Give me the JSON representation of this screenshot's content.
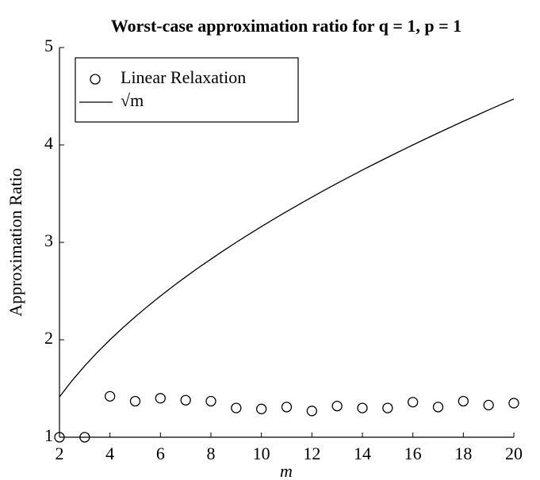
{
  "chart_data": {
    "type": "line",
    "title": "Worst-case approximation ratio for q = 1, p = 1",
    "xlabel": "m",
    "ylabel": "Approximation Ratio",
    "xlim": [
      2,
      20
    ],
    "ylim": [
      1,
      5
    ],
    "xticks": [
      2,
      4,
      6,
      8,
      10,
      12,
      14,
      16,
      18,
      20
    ],
    "yticks": [
      1,
      2,
      3,
      4,
      5
    ],
    "legend": "upper left",
    "series": [
      {
        "name": "Linear Relaxation",
        "type": "scatter",
        "color": "#000000",
        "x": [
          2,
          3,
          4,
          5,
          6,
          7,
          8,
          9,
          10,
          11,
          12,
          13,
          14,
          15,
          16,
          17,
          18,
          19,
          20
        ],
        "values": [
          1.0,
          1.0,
          1.42,
          1.37,
          1.4,
          1.38,
          1.37,
          1.3,
          1.29,
          1.31,
          1.27,
          1.32,
          1.3,
          1.3,
          1.36,
          1.31,
          1.37,
          1.33,
          1.35
        ]
      },
      {
        "name": "√m",
        "type": "line",
        "color": "#000000",
        "x": [
          2,
          2.5,
          3,
          3.5,
          4,
          4.5,
          5,
          5.5,
          6,
          6.5,
          7,
          7.5,
          8,
          8.5,
          9,
          9.5,
          10,
          10.5,
          11,
          11.5,
          12,
          12.5,
          13,
          13.5,
          14,
          14.5,
          15,
          15.5,
          16,
          16.5,
          17,
          17.5,
          18,
          18.5,
          19,
          19.5,
          20
        ],
        "values": [
          1.414,
          1.581,
          1.732,
          1.871,
          2,
          2.121,
          2.236,
          2.345,
          2.449,
          2.55,
          2.646,
          2.739,
          2.828,
          2.915,
          3,
          3.082,
          3.162,
          3.24,
          3.317,
          3.391,
          3.464,
          3.536,
          3.606,
          3.674,
          3.742,
          3.808,
          3.873,
          3.937,
          4,
          4.062,
          4.123,
          4.183,
          4.243,
          4.301,
          4.359,
          4.416,
          4.472
        ]
      }
    ]
  }
}
